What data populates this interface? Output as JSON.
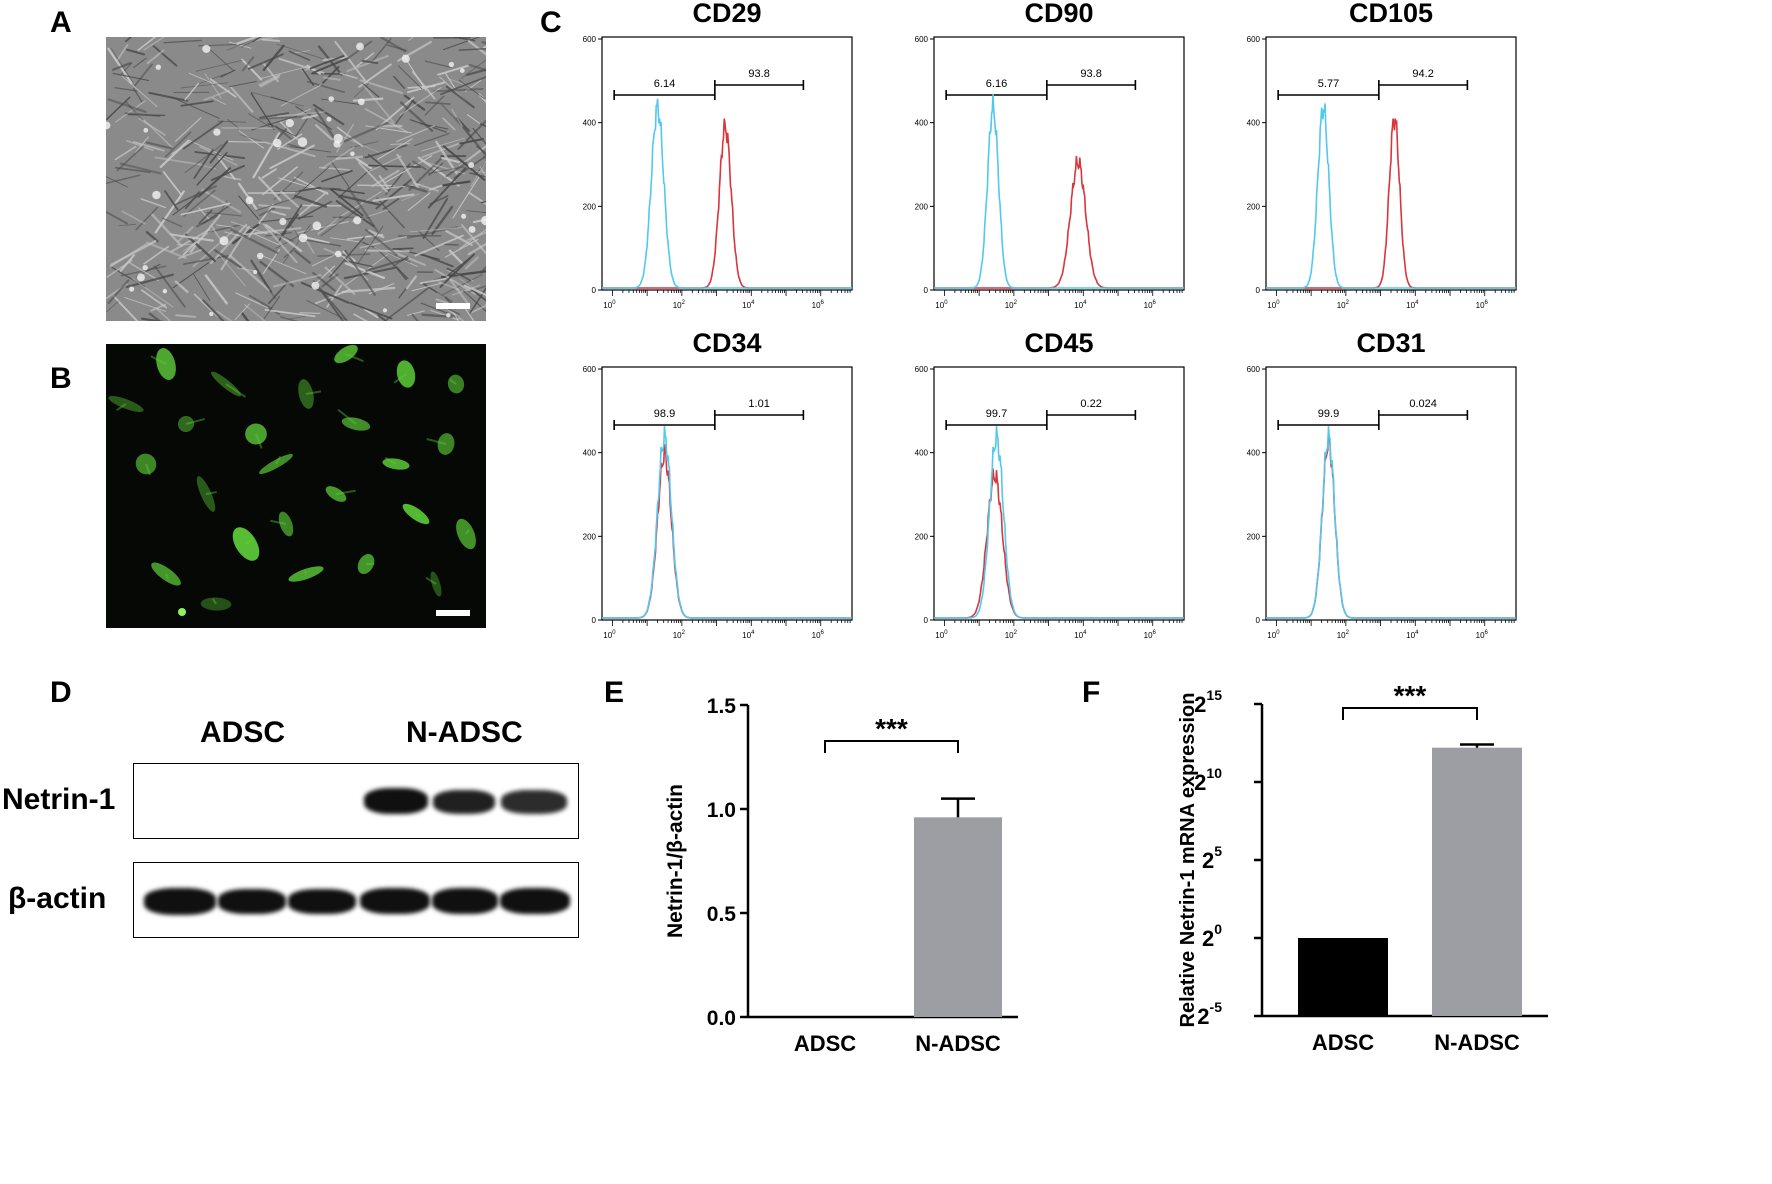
{
  "panels": {
    "A": "A",
    "B": "B",
    "C": "C",
    "D": "D",
    "E": "E",
    "F": "F"
  },
  "colors": {
    "blue_trace": "#52c8ee",
    "red_trace": "#d9353c",
    "bar_black": "#000000",
    "bar_gray": "#9d9ea3",
    "fluor_green": "#5fd13a"
  },
  "flow_axis": {
    "y_ticks": [
      "0",
      "200",
      "400",
      "600"
    ],
    "x_ticks": [
      {
        "base": "10",
        "exp": "0"
      },
      {
        "base": "10",
        "exp": "2"
      },
      {
        "base": "10",
        "exp": "4"
      },
      {
        "base": "10",
        "exp": "6"
      }
    ]
  },
  "histograms": [
    {
      "title": "CD29",
      "left_gate": "6.14",
      "right_gate": "93.8"
    },
    {
      "title": "CD90",
      "left_gate": "6.16",
      "right_gate": "93.8"
    },
    {
      "title": "CD105",
      "left_gate": "5.77",
      "right_gate": "94.2"
    },
    {
      "title": "CD34",
      "left_gate": "98.9",
      "right_gate": "1.01"
    },
    {
      "title": "CD45",
      "left_gate": "99.7",
      "right_gate": "0.22"
    },
    {
      "title": "CD31",
      "left_gate": "99.9",
      "right_gate": "0.024"
    }
  ],
  "western_blot": {
    "group1": "ADSC",
    "group2": "N-ADSC",
    "row1": "Netrin-1",
    "row2": "β-actin"
  },
  "chart_data": [
    {
      "type": "bar",
      "panel": "E",
      "categories": [
        "ADSC",
        "N-ADSC"
      ],
      "values": [
        0.0,
        0.96
      ],
      "error_upper": [
        0.0,
        0.09
      ],
      "ylabel": "Netrin-1/β-actin",
      "ylim": [
        0.0,
        1.5
      ],
      "y_ticks": [
        "0.0",
        "0.5",
        "1.0",
        "1.5"
      ],
      "significance": "***"
    },
    {
      "type": "bar",
      "panel": "F",
      "categories": [
        "ADSC",
        "N-ADSC"
      ],
      "values_log2": [
        0,
        12.2
      ],
      "error_upper_log2": [
        0,
        0.2
      ],
      "ylabel": "Relative Netrin-1 mRNA expression",
      "ylim_log2": [
        -5,
        15
      ],
      "y_ticks": [
        {
          "base": "2",
          "exp": "-5"
        },
        {
          "base": "2",
          "exp": "0"
        },
        {
          "base": "2",
          "exp": "5"
        },
        {
          "base": "2",
          "exp": "10"
        },
        {
          "base": "2",
          "exp": "15"
        }
      ],
      "significance": "***"
    }
  ]
}
